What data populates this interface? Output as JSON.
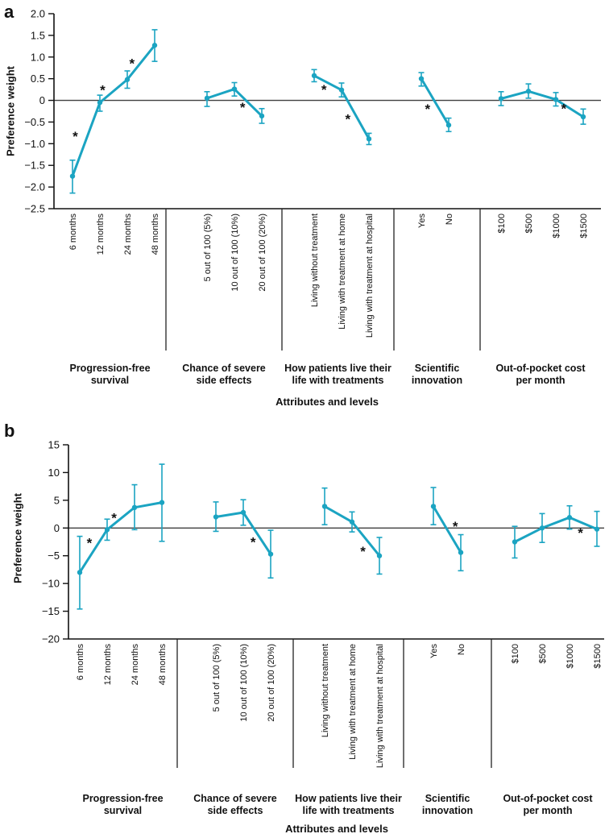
{
  "style": {
    "line_color": "#1ba4c2",
    "axis_color": "#111111",
    "zero_line_color": "#3f3f3f",
    "separator_color": "#222222",
    "text_color": "#111111",
    "background": "#ffffff"
  },
  "chart_data": {
    "type": "line",
    "description": "Two-panel preference-weight plot with 95% CI error bars and significance asterisks",
    "panels": [
      {
        "label": "a",
        "ylabel": "Preference weight",
        "xlabel": "Attributes and levels",
        "ylim": [
          -2.5,
          2.0
        ],
        "yticks": [
          {
            "v": 2.0,
            "label": "2.0"
          },
          {
            "v": 1.5,
            "label": "1.5"
          },
          {
            "v": 1.0,
            "label": "1.0"
          },
          {
            "v": 0.5,
            "label": "0.5"
          },
          {
            "v": 0,
            "label": "0"
          },
          {
            "v": -0.5,
            "label": "−0.5"
          },
          {
            "v": -1.0,
            "label": "−1.0"
          },
          {
            "v": -1.5,
            "label": "−1.5"
          },
          {
            "v": -2.0,
            "label": "−2.0"
          },
          {
            "v": -2.5,
            "label": "−2.5"
          }
        ],
        "groups": [
          {
            "title_lines": [
              "Progression-free",
              "survival"
            ],
            "points": [
              {
                "level": "6 months",
                "value": -1.75,
                "ci": [
                  -2.14,
                  -1.38
                ]
              },
              {
                "level": "12 months",
                "value": -0.05,
                "ci": [
                  -0.25,
                  0.12
                ]
              },
              {
                "level": "24 months",
                "value": 0.48,
                "ci": [
                  0.28,
                  0.68
                ]
              },
              {
                "level": "48 months",
                "value": 1.27,
                "ci": [
                  0.9,
                  1.63
                ]
              }
            ]
          },
          {
            "title_lines": [
              "Chance of severe",
              "side effects"
            ],
            "points": [
              {
                "level": "5 out of 100 (5%)",
                "value": 0.05,
                "ci": [
                  -0.14,
                  0.2
                ]
              },
              {
                "level": "10 out of 100 (10%)",
                "value": 0.26,
                "ci": [
                  0.1,
                  0.41
                ]
              },
              {
                "level": "20 out of 100 (20%)",
                "value": -0.36,
                "ci": [
                  -0.53,
                  -0.19
                ]
              }
            ]
          },
          {
            "title_lines": [
              "How patients live their",
              "life with treatments"
            ],
            "points": [
              {
                "level": "Living without treatment",
                "value": 0.57,
                "ci": [
                  0.43,
                  0.71
                ]
              },
              {
                "level": "Living with treatment at home",
                "value": 0.24,
                "ci": [
                  0.08,
                  0.4
                ]
              },
              {
                "level": "Living with treatment at hospital",
                "value": -0.89,
                "ci": [
                  -1.02,
                  -0.76
                ]
              }
            ]
          },
          {
            "title_lines": [
              "Scientific",
              "innovation"
            ],
            "points": [
              {
                "level": "Yes",
                "value": 0.5,
                "ci": [
                  0.33,
                  0.64
                ]
              },
              {
                "level": "No",
                "value": -0.57,
                "ci": [
                  -0.72,
                  -0.41
                ]
              }
            ]
          },
          {
            "title_lines": [
              "Out-of-pocket cost",
              "per month"
            ],
            "points": [
              {
                "level": "$100",
                "value": 0.04,
                "ci": [
                  -0.12,
                  0.2
                ]
              },
              {
                "level": "$500",
                "value": 0.21,
                "ci": [
                  0.05,
                  0.38
                ]
              },
              {
                "level": "$1000",
                "value": 0.02,
                "ci": [
                  -0.13,
                  0.18
                ]
              },
              {
                "level": "$1500",
                "value": -0.38,
                "ci": [
                  -0.55,
                  -0.2
                ]
              }
            ]
          }
        ],
        "significance": [
          {
            "x_index": 0.1,
            "value": -0.77
          },
          {
            "x_index": 1.1,
            "value": 0.3
          },
          {
            "x_index": 2.17,
            "value": 0.91
          },
          {
            "x_index": 5.3,
            "value": -0.1
          },
          {
            "x_index": 7.36,
            "value": 0.31
          },
          {
            "x_index": 8.23,
            "value": -0.37
          },
          {
            "x_index": 10.23,
            "value": -0.14
          },
          {
            "x_index": 14.29,
            "value": -0.13
          }
        ]
      },
      {
        "label": "b",
        "ylabel": "Preference weight",
        "xlabel": "Attributes and levels",
        "ylim": [
          -20,
          15
        ],
        "yticks": [
          {
            "v": 15,
            "label": "15"
          },
          {
            "v": 10,
            "label": "10"
          },
          {
            "v": 5,
            "label": "5"
          },
          {
            "v": 0,
            "label": "0"
          },
          {
            "v": -5,
            "label": "−5"
          },
          {
            "v": -10,
            "label": "−10"
          },
          {
            "v": -15,
            "label": "−15"
          },
          {
            "v": -20,
            "label": "−20"
          }
        ],
        "groups": [
          {
            "title_lines": [
              "Progression-free",
              "survival"
            ],
            "points": [
              {
                "level": "6 months",
                "value": -8.0,
                "ci": [
                  -14.6,
                  -1.5
                ]
              },
              {
                "level": "12 months",
                "value": -0.3,
                "ci": [
                  -2.2,
                  1.6
                ]
              },
              {
                "level": "24 months",
                "value": 3.7,
                "ci": [
                  -0.3,
                  7.8
                ]
              },
              {
                "level": "48 months",
                "value": 4.6,
                "ci": [
                  -2.4,
                  11.5
                ]
              }
            ]
          },
          {
            "title_lines": [
              "Chance of severe",
              "side effects"
            ],
            "points": [
              {
                "level": "5 out of 100 (5%)",
                "value": 2.0,
                "ci": [
                  -0.6,
                  4.7
                ]
              },
              {
                "level": "10 out of 100 (10%)",
                "value": 2.8,
                "ci": [
                  0.5,
                  5.1
                ]
              },
              {
                "level": "20 out of 100 (20%)",
                "value": -4.7,
                "ci": [
                  -9.0,
                  -0.4
                ]
              }
            ]
          },
          {
            "title_lines": [
              "How patients live their",
              "life with treatments"
            ],
            "points": [
              {
                "level": "Living without treatment",
                "value": 3.9,
                "ci": [
                  0.6,
                  7.2
                ]
              },
              {
                "level": "Living with treatment at home",
                "value": 1.1,
                "ci": [
                  -0.7,
                  2.9
                ]
              },
              {
                "level": "Living with treatment at hospital",
                "value": -5.0,
                "ci": [
                  -8.3,
                  -1.7
                ]
              }
            ]
          },
          {
            "title_lines": [
              "Scientific",
              "innovation"
            ],
            "points": [
              {
                "level": "Yes",
                "value": 3.9,
                "ci": [
                  0.6,
                  7.3
                ]
              },
              {
                "level": "No",
                "value": -4.4,
                "ci": [
                  -7.7,
                  -1.2
                ]
              }
            ]
          },
          {
            "title_lines": [
              "Out-of-pocket cost",
              "per month"
            ],
            "points": [
              {
                "level": "$100",
                "value": -2.5,
                "ci": [
                  -5.4,
                  0.3
                ]
              },
              {
                "level": "$500",
                "value": 0.0,
                "ci": [
                  -2.6,
                  2.6
                ]
              },
              {
                "level": "$1000",
                "value": 1.9,
                "ci": [
                  -0.2,
                  4.0
                ]
              },
              {
                "level": "$1500",
                "value": -0.2,
                "ci": [
                  -3.3,
                  3.0
                ]
              }
            ]
          }
        ],
        "significance": [
          {
            "x_index": 0.35,
            "value": -2.2
          },
          {
            "x_index": 1.25,
            "value": 2.3
          },
          {
            "x_index": 5.36,
            "value": -2.1
          },
          {
            "x_index": 8.4,
            "value": -3.7
          },
          {
            "x_index": 10.8,
            "value": 0.8
          },
          {
            "x_index": 14.4,
            "value": -0.4
          }
        ]
      }
    ]
  }
}
